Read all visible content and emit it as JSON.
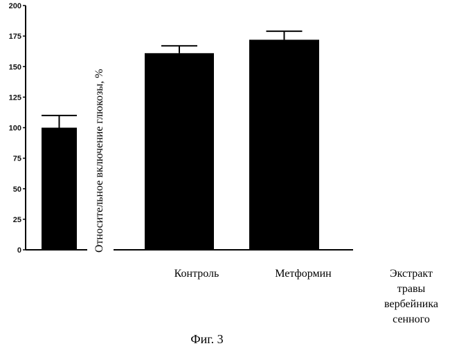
{
  "chart_data": {
    "type": "bar",
    "ylabel": "Относительное включение глюкозы, %",
    "ylim": [
      0,
      200
    ],
    "yticks": [
      0,
      25,
      50,
      75,
      100,
      125,
      150,
      175,
      200
    ],
    "categories": [
      "",
      "Контроль",
      "Метформин",
      "Экстракт травы вербейника сенного"
    ],
    "category_lines": [
      [],
      [
        "Контроль"
      ],
      [
        "Метформин"
      ],
      [
        "Экстракт",
        "травы",
        "вербейника",
        "сенного"
      ]
    ],
    "values": [
      100,
      161,
      172,
      null
    ],
    "errors": [
      10,
      6,
      7,
      null
    ],
    "colors": {
      "bar": "#000000",
      "axis": "#000000"
    },
    "grid": false,
    "legend": "none"
  },
  "caption": "Фиг. 3"
}
